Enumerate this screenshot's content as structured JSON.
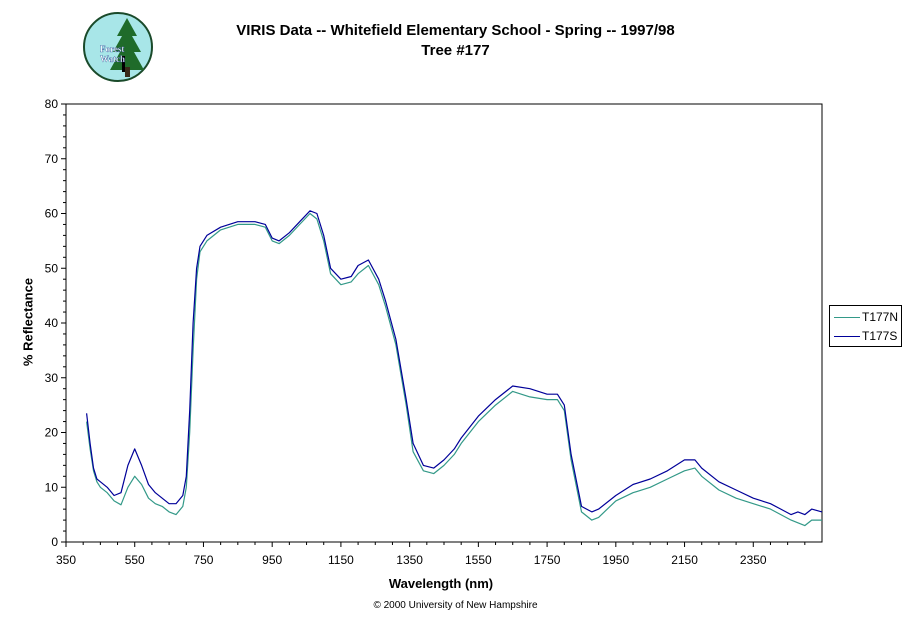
{
  "header": {
    "title_line1": "VIRIS Data -- Whitefield Elementary School - Spring -- 1997/98",
    "title_line2": "Tree #177"
  },
  "logo": {
    "text_line1": "Forest",
    "text_line2": "Watch"
  },
  "footer": {
    "copyright": "© 2000 University of New Hampshire"
  },
  "colors": {
    "T177N": "#339988",
    "T177S": "#000099"
  },
  "chart_data": {
    "type": "line",
    "xlabel": "Wavelength (nm)",
    "ylabel": "% Reflectance",
    "xlim": [
      350,
      2550
    ],
    "ylim": [
      0,
      80
    ],
    "x_ticks": [
      350,
      550,
      750,
      950,
      1150,
      1350,
      1550,
      1750,
      1950,
      2150,
      2350
    ],
    "y_ticks": [
      0,
      10,
      20,
      30,
      40,
      50,
      60,
      70,
      80
    ],
    "grid": false,
    "legend_position": "right",
    "series": [
      {
        "name": "T177N",
        "x": [
          410,
          420,
          430,
          440,
          450,
          470,
          490,
          510,
          530,
          550,
          570,
          590,
          610,
          630,
          650,
          670,
          690,
          700,
          710,
          720,
          730,
          740,
          760,
          800,
          850,
          900,
          930,
          950,
          970,
          1000,
          1030,
          1060,
          1080,
          1100,
          1120,
          1150,
          1180,
          1200,
          1230,
          1260,
          1280,
          1310,
          1340,
          1360,
          1390,
          1420,
          1450,
          1480,
          1500,
          1550,
          1600,
          1650,
          1700,
          1750,
          1780,
          1800,
          1820,
          1850,
          1880,
          1900,
          1950,
          2000,
          2050,
          2100,
          2150,
          2180,
          2200,
          2250,
          2300,
          2350,
          2400,
          2430,
          2460,
          2480,
          2500,
          2520,
          2550
        ],
        "y": [
          22,
          17,
          13,
          11,
          10,
          9,
          7.5,
          6.8,
          10,
          12,
          10.5,
          8,
          7,
          6.5,
          5.5,
          5,
          6.5,
          10,
          20,
          35,
          48,
          53,
          55,
          57,
          58,
          58,
          57.5,
          55,
          54.5,
          56,
          58,
          60,
          59,
          55,
          49,
          47,
          47.5,
          49,
          50.5,
          47,
          43,
          36,
          25,
          16.5,
          13,
          12.5,
          14,
          16,
          18,
          22,
          25,
          27.5,
          26.5,
          26,
          26,
          24,
          15,
          5.5,
          4,
          4.5,
          7.5,
          9,
          10,
          11.5,
          13,
          13.5,
          12,
          9.5,
          8,
          7,
          6,
          5,
          4,
          3.5,
          3,
          4,
          4
        ]
      },
      {
        "name": "T177S",
        "x": [
          410,
          420,
          430,
          440,
          450,
          470,
          490,
          510,
          530,
          550,
          570,
          590,
          610,
          630,
          650,
          670,
          690,
          700,
          710,
          720,
          730,
          740,
          760,
          800,
          850,
          900,
          930,
          950,
          970,
          1000,
          1030,
          1060,
          1080,
          1100,
          1120,
          1150,
          1180,
          1200,
          1230,
          1260,
          1280,
          1310,
          1340,
          1360,
          1390,
          1420,
          1450,
          1480,
          1500,
          1550,
          1600,
          1650,
          1700,
          1750,
          1780,
          1800,
          1820,
          1850,
          1880,
          1900,
          1950,
          2000,
          2050,
          2100,
          2150,
          2180,
          2200,
          2250,
          2300,
          2350,
          2400,
          2430,
          2460,
          2480,
          2500,
          2520,
          2550
        ],
        "y": [
          23.5,
          18,
          13.5,
          11.5,
          11,
          10,
          8.5,
          9,
          14,
          17,
          14,
          10.5,
          9,
          8,
          7,
          7,
          8.5,
          12,
          24,
          40,
          50,
          54,
          56,
          57.5,
          58.5,
          58.5,
          58,
          55.5,
          55,
          56.5,
          58.5,
          60.5,
          60,
          56,
          50,
          48,
          48.5,
          50.5,
          51.5,
          48,
          44,
          37,
          26,
          18,
          14,
          13.5,
          15,
          17,
          19,
          23,
          26,
          28.5,
          28,
          27,
          27,
          25,
          16,
          6.5,
          5.5,
          6,
          8.5,
          10.5,
          11.5,
          13,
          15,
          15,
          13.5,
          11,
          9.5,
          8,
          7,
          6,
          5,
          5.5,
          5,
          6,
          5.5
        ]
      }
    ]
  }
}
